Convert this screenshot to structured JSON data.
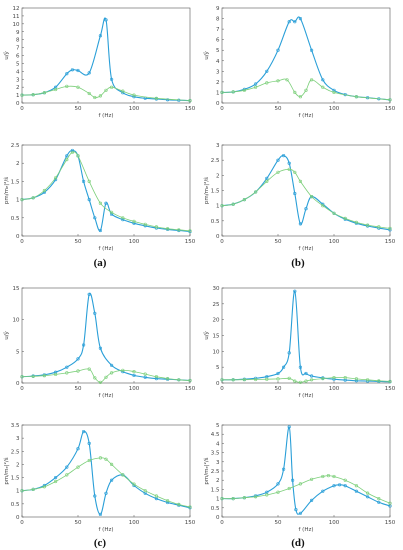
{
  "figure": {
    "panel_labels": [
      "(a)",
      "(b)",
      "(c)",
      "(d)"
    ],
    "colors": {
      "blue": "#2a9fd8",
      "green": "#7ccf7a",
      "axis": "#555555"
    }
  },
  "chart_data": [
    {
      "type": "line",
      "panel": "a",
      "row": "top",
      "xlabel": "f (Hz)",
      "ylabel": "u/ŷ",
      "xlim": [
        0,
        150
      ],
      "ylim": [
        0,
        12
      ],
      "xticks": [
        0,
        50,
        100,
        150
      ],
      "yticks": [
        0,
        1,
        2,
        3,
        4,
        5,
        6,
        7,
        8,
        9,
        10,
        11,
        12
      ],
      "series": [
        {
          "style": "blue",
          "x": [
            0,
            10,
            20,
            30,
            40,
            45,
            50,
            60,
            70,
            75,
            80,
            90,
            100,
            110,
            120,
            130,
            140,
            150
          ],
          "y": [
            1,
            1.05,
            1.3,
            2,
            3.7,
            4.2,
            4.1,
            3.8,
            8.5,
            10.5,
            3,
            1.3,
            0.8,
            0.6,
            0.5,
            0.4,
            0.35,
            0.3
          ]
        },
        {
          "style": "green",
          "x": [
            0,
            10,
            20,
            30,
            40,
            50,
            60,
            65,
            70,
            75,
            80,
            90,
            100,
            120,
            150
          ],
          "y": [
            1,
            1.05,
            1.3,
            1.7,
            2.1,
            2,
            1.2,
            0.7,
            0.9,
            1.6,
            2,
            1.5,
            1,
            0.6,
            0.3
          ]
        }
      ]
    },
    {
      "type": "line",
      "panel": "b",
      "row": "top",
      "xlabel": "f (Hz)",
      "ylabel": "u/ŷ",
      "xlim": [
        0,
        150
      ],
      "ylim": [
        0,
        9
      ],
      "xticks": [
        0,
        50,
        100,
        150
      ],
      "yticks": [
        0,
        1,
        2,
        3,
        4,
        5,
        6,
        7,
        8,
        9
      ],
      "series": [
        {
          "style": "blue",
          "x": [
            0,
            10,
            20,
            30,
            40,
            50,
            60,
            65,
            70,
            80,
            90,
            100,
            110,
            120,
            130,
            140,
            150
          ],
          "y": [
            1,
            1.05,
            1.3,
            1.8,
            3,
            5,
            7.7,
            7.7,
            8,
            5,
            2.2,
            1.2,
            0.8,
            0.6,
            0.5,
            0.4,
            0.3
          ]
        },
        {
          "style": "green",
          "x": [
            0,
            10,
            20,
            30,
            40,
            50,
            58,
            65,
            70,
            75,
            80,
            90,
            100,
            120,
            150
          ],
          "y": [
            1,
            1.05,
            1.2,
            1.5,
            1.9,
            2.1,
            2.2,
            1,
            0.6,
            1.2,
            2.2,
            1.5,
            1,
            0.6,
            0.3
          ]
        }
      ]
    },
    {
      "type": "line",
      "panel": "a",
      "row": "bottom",
      "xlabel": "f (Hz)",
      "ylabel": "pm/mₑ|²/ŝ",
      "xlim": [
        0,
        150
      ],
      "ylim": [
        0,
        2.5
      ],
      "xticks": [
        0,
        50,
        100,
        150
      ],
      "yticks": [
        0,
        0.5,
        1,
        1.5,
        2,
        2.5
      ],
      "series": [
        {
          "style": "blue",
          "x": [
            0,
            10,
            20,
            30,
            40,
            45,
            50,
            55,
            60,
            65,
            70,
            75,
            80,
            90,
            100,
            110,
            120,
            130,
            140,
            150
          ],
          "y": [
            1,
            1.05,
            1.2,
            1.55,
            2.2,
            2.35,
            2.2,
            1.5,
            1,
            0.5,
            0.15,
            0.9,
            0.6,
            0.45,
            0.35,
            0.28,
            0.22,
            0.18,
            0.15,
            0.12
          ]
        },
        {
          "style": "green",
          "x": [
            0,
            10,
            20,
            30,
            40,
            45,
            50,
            60,
            70,
            80,
            90,
            100,
            110,
            120,
            130,
            140,
            150
          ],
          "y": [
            1,
            1.05,
            1.25,
            1.6,
            2.1,
            2.3,
            2.2,
            1.5,
            0.9,
            0.65,
            0.5,
            0.4,
            0.32,
            0.25,
            0.2,
            0.17,
            0.14
          ]
        }
      ]
    },
    {
      "type": "line",
      "panel": "b",
      "row": "bottom",
      "xlabel": "f (Hz)",
      "ylabel": "pm/mₑ|²/ŝ",
      "xlim": [
        0,
        150
      ],
      "ylim": [
        0,
        3
      ],
      "xticks": [
        0,
        50,
        100,
        150
      ],
      "yticks": [
        0,
        0.5,
        1,
        1.5,
        2,
        2.5,
        3
      ],
      "series": [
        {
          "style": "blue",
          "x": [
            0,
            10,
            20,
            30,
            40,
            50,
            55,
            60,
            65,
            70,
            75,
            80,
            90,
            100,
            110,
            120,
            130,
            140,
            150
          ],
          "y": [
            1,
            1.05,
            1.2,
            1.45,
            1.9,
            2.5,
            2.65,
            2.4,
            1.4,
            0.4,
            0.9,
            1.3,
            1.05,
            0.75,
            0.55,
            0.42,
            0.33,
            0.26,
            0.2
          ]
        },
        {
          "style": "green",
          "x": [
            0,
            10,
            20,
            30,
            40,
            50,
            60,
            65,
            70,
            80,
            90,
            100,
            110,
            120,
            130,
            140,
            150
          ],
          "y": [
            1,
            1.05,
            1.2,
            1.45,
            1.8,
            2.1,
            2.2,
            2.1,
            1.8,
            1.3,
            1,
            0.75,
            0.58,
            0.45,
            0.36,
            0.3,
            0.25
          ]
        }
      ]
    },
    {
      "type": "line",
      "panel": "c",
      "row": "top",
      "xlabel": "f (Hz)",
      "ylabel": "u/ŷ",
      "xlim": [
        0,
        150
      ],
      "ylim": [
        0,
        15
      ],
      "xticks": [
        0,
        50,
        100,
        150
      ],
      "yticks": [
        0,
        5,
        10,
        15
      ],
      "series": [
        {
          "style": "blue",
          "x": [
            0,
            10,
            20,
            30,
            40,
            50,
            55,
            60,
            65,
            70,
            80,
            90,
            100,
            110,
            120,
            130,
            140,
            150
          ],
          "y": [
            1,
            1.1,
            1.3,
            1.7,
            2.5,
            3.8,
            6,
            14,
            11,
            5.5,
            2.8,
            1.8,
            1.2,
            0.9,
            0.7,
            0.6,
            0.5,
            0.4
          ]
        },
        {
          "style": "green",
          "x": [
            0,
            10,
            20,
            30,
            40,
            50,
            60,
            65,
            70,
            75,
            80,
            90,
            100,
            110,
            120,
            130,
            140,
            150
          ],
          "y": [
            1,
            1.05,
            1.15,
            1.35,
            1.6,
            1.9,
            2.2,
            0.8,
            0.1,
            0.9,
            1.6,
            2,
            1.8,
            1.4,
            1,
            0.7,
            0.5,
            0.4
          ]
        }
      ]
    },
    {
      "type": "line",
      "panel": "d",
      "row": "top",
      "xlabel": "f (Hz)",
      "ylabel": "u/ŷ",
      "xlim": [
        0,
        150
      ],
      "ylim": [
        0,
        30
      ],
      "xticks": [
        0,
        50,
        100,
        150
      ],
      "yticks": [
        0,
        5,
        10,
        15,
        20,
        25,
        30
      ],
      "series": [
        {
          "style": "blue",
          "x": [
            0,
            10,
            20,
            30,
            40,
            50,
            55,
            60,
            65,
            70,
            75,
            80,
            90,
            100,
            110,
            120,
            130,
            140,
            150
          ],
          "y": [
            1,
            1.05,
            1.2,
            1.5,
            2,
            3,
            5,
            9.5,
            29,
            5,
            3,
            2.2,
            1.6,
            1.2,
            0.9,
            0.7,
            0.6,
            0.5,
            0.4
          ]
        },
        {
          "style": "green",
          "x": [
            0,
            10,
            20,
            30,
            40,
            50,
            60,
            65,
            70,
            75,
            80,
            90,
            100,
            110,
            120,
            130,
            140,
            150
          ],
          "y": [
            1,
            1.02,
            1.05,
            1.1,
            1.2,
            1.3,
            1.45,
            0.6,
            0.2,
            0.6,
            1,
            1.4,
            1.7,
            1.7,
            1.3,
            1,
            0.7,
            0.5
          ]
        }
      ]
    },
    {
      "type": "line",
      "panel": "c",
      "row": "bottom",
      "xlabel": "f (Hz)",
      "ylabel": "pm/mₑ|²/ŝ",
      "xlim": [
        0,
        150
      ],
      "ylim": [
        0,
        3.5
      ],
      "xticks": [
        0,
        50,
        100,
        150
      ],
      "yticks": [
        0,
        0.5,
        1,
        1.5,
        2,
        2.5,
        3,
        3.5
      ],
      "series": [
        {
          "style": "blue",
          "x": [
            0,
            10,
            20,
            30,
            40,
            50,
            55,
            60,
            65,
            70,
            75,
            80,
            90,
            100,
            110,
            120,
            130,
            140,
            150
          ],
          "y": [
            1,
            1.05,
            1.2,
            1.5,
            1.9,
            2.6,
            3.25,
            2.8,
            0.8,
            0.1,
            0.9,
            1.4,
            1.6,
            1.2,
            0.9,
            0.7,
            0.55,
            0.45,
            0.35
          ]
        },
        {
          "style": "green",
          "x": [
            0,
            10,
            20,
            30,
            40,
            50,
            60,
            70,
            75,
            80,
            90,
            100,
            110,
            120,
            130,
            140,
            150
          ],
          "y": [
            1,
            1.05,
            1.15,
            1.35,
            1.6,
            1.9,
            2.15,
            2.25,
            2.2,
            2,
            1.6,
            1.25,
            1,
            0.8,
            0.62,
            0.48,
            0.38
          ]
        }
      ]
    },
    {
      "type": "line",
      "panel": "d",
      "row": "bottom",
      "xlabel": "f (Hz)",
      "ylabel": "pm/mₑ|²/ŝ",
      "xlim": [
        0,
        150
      ],
      "ylim": [
        0,
        5
      ],
      "xticks": [
        0,
        50,
        100,
        150
      ],
      "yticks": [
        0,
        0.5,
        1,
        1.5,
        2,
        2.5,
        3,
        3.5,
        4,
        4.5,
        5
      ],
      "series": [
        {
          "style": "blue",
          "x": [
            0,
            10,
            20,
            30,
            40,
            50,
            55,
            60,
            63,
            66,
            70,
            80,
            90,
            100,
            105,
            110,
            120,
            130,
            140,
            150
          ],
          "y": [
            1,
            1,
            1.05,
            1.15,
            1.35,
            1.8,
            2.6,
            4.9,
            2,
            0.4,
            0.2,
            0.9,
            1.4,
            1.7,
            1.75,
            1.7,
            1.4,
            1.1,
            0.8,
            0.6
          ]
        },
        {
          "style": "green",
          "x": [
            0,
            10,
            20,
            30,
            40,
            50,
            60,
            70,
            80,
            90,
            95,
            100,
            110,
            120,
            130,
            140,
            150
          ],
          "y": [
            1,
            1,
            1.05,
            1.1,
            1.2,
            1.35,
            1.55,
            1.8,
            2.05,
            2.2,
            2.25,
            2.2,
            2,
            1.7,
            1.3,
            1,
            0.75
          ]
        }
      ]
    }
  ]
}
